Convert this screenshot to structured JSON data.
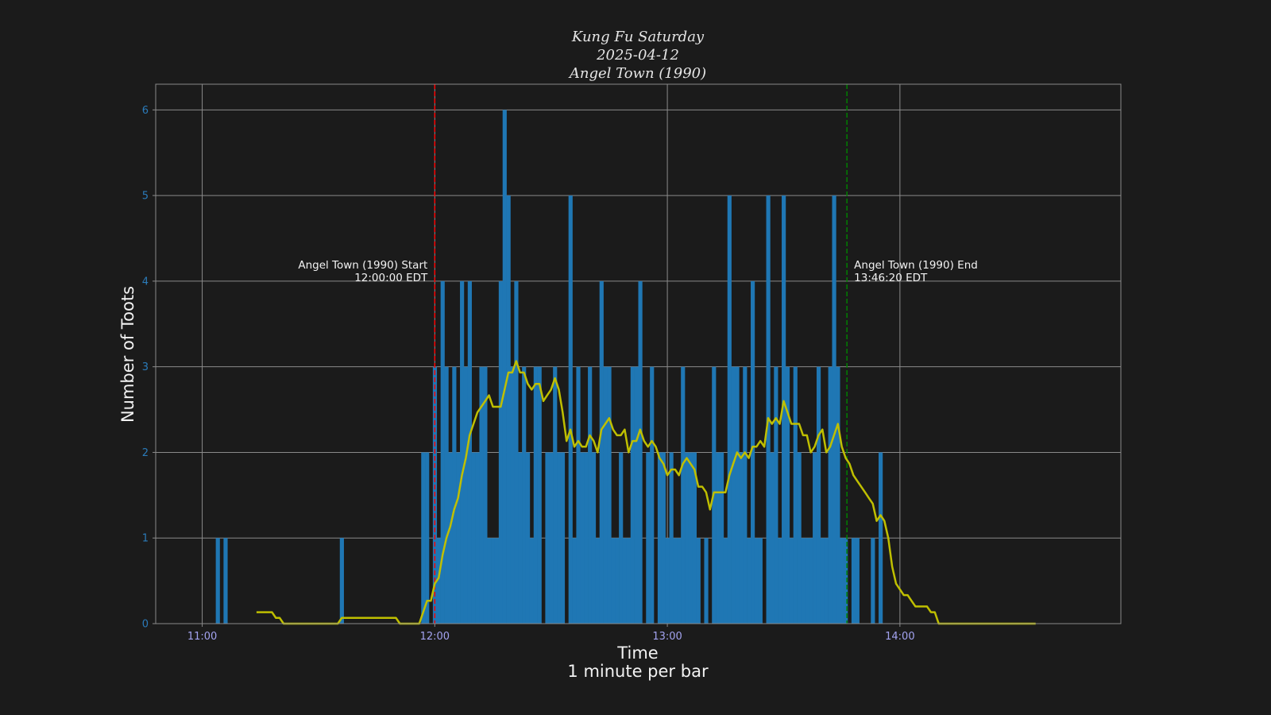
{
  "chart_data": {
    "type": "bar",
    "title_lines": [
      "Kung Fu Saturday",
      "2025-04-12",
      "Angel Town (1990)"
    ],
    "xlabel": "Time",
    "xlabel_sub": "1 minute per bar",
    "ylabel": "Number of Toots",
    "x_start": "11:00",
    "bin_minutes": 1,
    "xlim": [
      "10:48",
      "14:57"
    ],
    "ylim": [
      0,
      6.3
    ],
    "xticks": [
      "11:00",
      "12:00",
      "13:00",
      "14:00"
    ],
    "yticks": [
      "0",
      "1",
      "2",
      "3",
      "4",
      "5",
      "6"
    ],
    "grid": true,
    "bar_color": "#1f77b4",
    "values": [
      0,
      0,
      0,
      0,
      1,
      0,
      1,
      0,
      0,
      0,
      0,
      0,
      0,
      0,
      0,
      0,
      0,
      0,
      0,
      0,
      0,
      0,
      0,
      0,
      0,
      0,
      0,
      0,
      0,
      0,
      0,
      0,
      0,
      0,
      0,
      0,
      1,
      0,
      0,
      0,
      0,
      0,
      0,
      0,
      0,
      0,
      0,
      0,
      0,
      0,
      0,
      0,
      0,
      0,
      0,
      0,
      0,
      2,
      2,
      0,
      3,
      1,
      4,
      3,
      2,
      3,
      2,
      4,
      3,
      4,
      2,
      2,
      3,
      3,
      1,
      1,
      1,
      4,
      6,
      5,
      3,
      4,
      2,
      3,
      2,
      1,
      3,
      3,
      0,
      2,
      2,
      3,
      2,
      2,
      0,
      5,
      1,
      3,
      2,
      2,
      3,
      2,
      1,
      4,
      3,
      3,
      1,
      1,
      2,
      1,
      1,
      3,
      3,
      4,
      0,
      2,
      3,
      0,
      2,
      2,
      1,
      2,
      1,
      1,
      3,
      2,
      2,
      2,
      1,
      0,
      1,
      0,
      3,
      2,
      2,
      1,
      5,
      3,
      3,
      2,
      3,
      1,
      4,
      1,
      1,
      0,
      5,
      2,
      3,
      1,
      5,
      3,
      1,
      3,
      2,
      1,
      1,
      1,
      2,
      3,
      1,
      1,
      3,
      5,
      3,
      1,
      1,
      0,
      1,
      1,
      0,
      0,
      0,
      1,
      0,
      2,
      0,
      0,
      0,
      0,
      0,
      0,
      0,
      0,
      0,
      0,
      0,
      0,
      0,
      0,
      0,
      0,
      0,
      0,
      0,
      0,
      0,
      0,
      0,
      0,
      0,
      0,
      0,
      0,
      0,
      0,
      0,
      0,
      0,
      0,
      0,
      0,
      0,
      0,
      0,
      0
    ],
    "moving_average": {
      "window_minutes": 15,
      "color": "#bfbf00"
    },
    "vlines": [
      {
        "time": "12:00:00",
        "label": "Angel Town (1990) Start",
        "sublabel": "12:00:00 EDT",
        "color": "#ff0000",
        "align": "right"
      },
      {
        "time": "13:46:20",
        "label": "Angel Town (1990) End",
        "sublabel": "13:46:20 EDT",
        "color": "#008000",
        "align": "left"
      }
    ]
  }
}
